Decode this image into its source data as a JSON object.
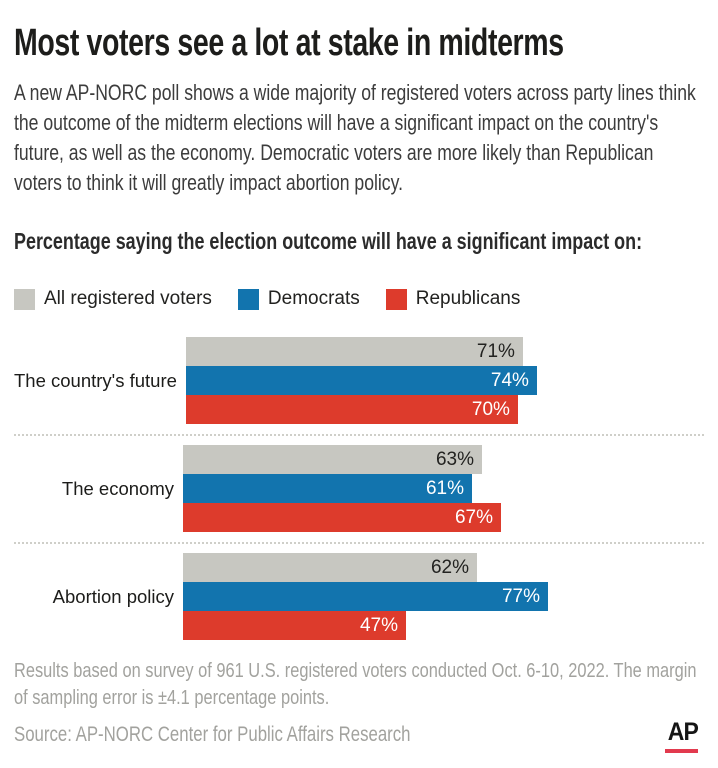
{
  "header": {
    "title": "Most voters see a lot at stake in midterms",
    "description": "A new AP-NORC poll shows a wide majority of registered voters across party lines think the outcome of the midterm elections will have a significant impact on the country's future, as well as the economy. Democratic voters are more likely than Republican voters to think it will greatly impact abortion policy."
  },
  "chart_data": {
    "type": "bar",
    "orientation": "horizontal",
    "title": "Percentage saying the election outcome will have a significant impact on:",
    "categories": [
      "The country's future",
      "The economy",
      "Abortion policy"
    ],
    "series": [
      {
        "name": "All registered voters",
        "color": "#c7c7c1",
        "label_color": "#222220",
        "values": [
          71,
          63,
          62
        ]
      },
      {
        "name": "Democrats",
        "color": "#1274ae",
        "label_color": "#ffffff",
        "values": [
          74,
          61,
          77
        ]
      },
      {
        "name": "Republicans",
        "color": "#dd3b2c",
        "label_color": "#ffffff",
        "values": [
          70,
          67,
          47
        ]
      }
    ],
    "value_suffix": "%",
    "xlim": [
      0,
      100
    ],
    "legend_position": "top",
    "grid": false
  },
  "footer": {
    "note": "Results based on survey of 961 U.S. registered voters conducted Oct. 6-10, 2022. The margin of sampling error is ±4.1 percentage points.",
    "source": "Source: AP-NORC Center for Public Affairs Research",
    "logo_text": "AP",
    "logo_bar_color": "#e23a4e"
  }
}
